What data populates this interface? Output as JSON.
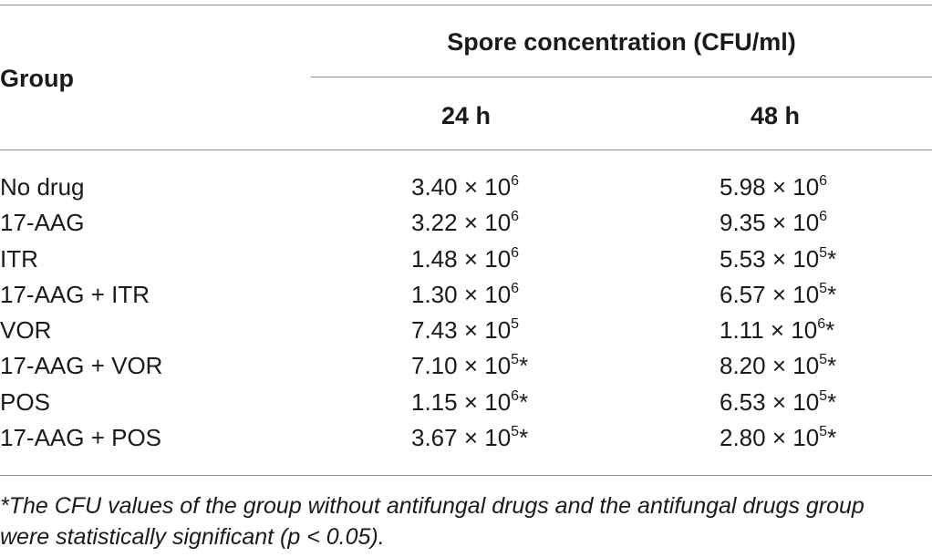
{
  "table": {
    "header": {
      "group_label": "Group",
      "span_label": "Spore concentration (CFU/ml)",
      "col1_label": "24 h",
      "col2_label": "48 h"
    },
    "rows": [
      {
        "group": "No drug",
        "h24_mant": "3.40 × 10",
        "h24_exp": "6",
        "h24_mark": "",
        "h48_mant": "5.98 × 10",
        "h48_exp": "6",
        "h48_mark": ""
      },
      {
        "group": "17-AAG",
        "h24_mant": "3.22 × 10",
        "h24_exp": "6",
        "h24_mark": "",
        "h48_mant": "9.35 × 10",
        "h48_exp": "6",
        "h48_mark": ""
      },
      {
        "group": "ITR",
        "h24_mant": "1.48 × 10",
        "h24_exp": "6",
        "h24_mark": "",
        "h48_mant": "5.53 × 10",
        "h48_exp": "5",
        "h48_mark": "*"
      },
      {
        "group": "17-AAG + ITR",
        "h24_mant": "1.30 × 10",
        "h24_exp": "6",
        "h24_mark": "",
        "h48_mant": "6.57 × 10",
        "h48_exp": "5",
        "h48_mark": "*"
      },
      {
        "group": "VOR",
        "h24_mant": "7.43 × 10",
        "h24_exp": "5",
        "h24_mark": "",
        "h48_mant": "1.11 × 10",
        "h48_exp": "6",
        "h48_mark": "*"
      },
      {
        "group": "17-AAG + VOR",
        "h24_mant": "7.10 × 10",
        "h24_exp": "5",
        "h24_mark": "*",
        "h48_mant": "8.20 × 10",
        "h48_exp": "5",
        "h48_mark": "*"
      },
      {
        "group": "POS",
        "h24_mant": "1.15 × 10",
        "h24_exp": "6",
        "h24_mark": "*",
        "h48_mant": "6.53 × 10",
        "h48_exp": "5",
        "h48_mark": "*"
      },
      {
        "group": "17-AAG + POS",
        "h24_mant": "3.67 × 10",
        "h24_exp": "5",
        "h24_mark": "*",
        "h48_mant": "2.80 × 10",
        "h48_exp": "5",
        "h48_mark": "*"
      }
    ],
    "footnote_line1": "*The CFU values of the group without antifungal drugs and the antifungal drugs group",
    "footnote_line2": "were statistically significant (p < 0.05)."
  }
}
